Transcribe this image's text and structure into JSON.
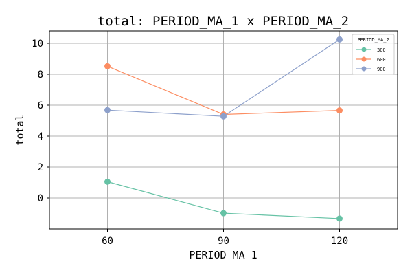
{
  "chart_data": {
    "type": "line",
    "title": "total: PERIOD_MA_1 x PERIOD_MA_2",
    "xlabel": "PERIOD_MA_1",
    "ylabel": "total",
    "x": [
      60,
      90,
      120
    ],
    "x_ticks": [
      "60",
      "90",
      "120"
    ],
    "xlim": [
      45,
      135
    ],
    "ylim": [
      -2,
      10.8
    ],
    "y_ticks": [
      0,
      2,
      4,
      6,
      8,
      10
    ],
    "grid": true,
    "legend": {
      "title": "PERIOD_MA_2",
      "placement": "top-right"
    },
    "series": [
      {
        "name": "300",
        "color": "#66c2a5",
        "values": [
          1.05,
          -0.98,
          -1.33
        ]
      },
      {
        "name": "600",
        "color": "#fc8d62",
        "values": [
          8.52,
          5.4,
          5.66
        ]
      },
      {
        "name": "900",
        "color": "#8da0cb",
        "values": [
          5.68,
          5.28,
          10.25
        ]
      }
    ]
  }
}
